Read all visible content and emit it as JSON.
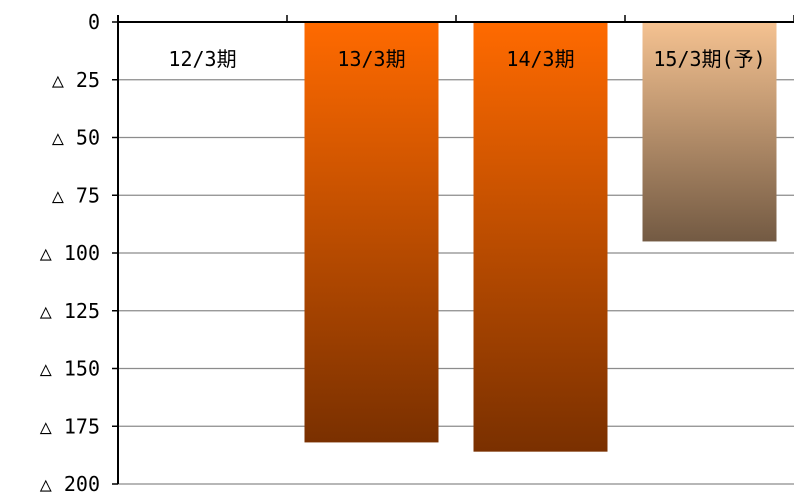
{
  "chart_data": {
    "type": "bar",
    "categories": [
      "12/3期",
      "13/3期",
      "14/3期",
      "15/3期(予)"
    ],
    "values": [
      0,
      -182,
      -186,
      -95
    ],
    "y_tick_labels": [
      "0",
      "△ 25",
      "△ 50",
      "△ 75",
      "△ 100",
      "△ 125",
      "△ 150",
      "△ 175",
      "△ 200"
    ],
    "y_ticks": [
      0,
      -25,
      -50,
      -75,
      -100,
      -125,
      -150,
      -175,
      -200
    ],
    "ylim": [
      -200,
      0
    ],
    "grid": true,
    "legend": "none",
    "category_label_position": "top-inside-plot",
    "colors": {
      "actual_top": "#ff6a00",
      "actual_bottom": "#7a3000",
      "forecast_top": "#f5c291",
      "forecast_bottom": "#735a43",
      "grid": "#8c8c8c",
      "axis": "#000000"
    }
  }
}
